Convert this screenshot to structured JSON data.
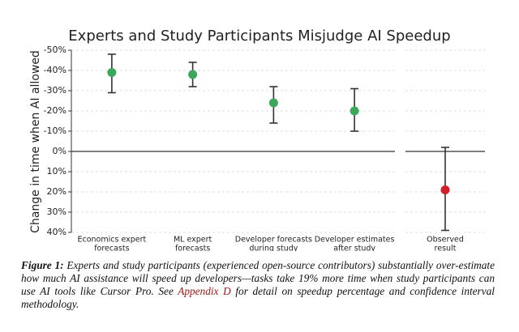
{
  "chart_data": [
    {
      "type": "errorbar",
      "title": "Experts and Study Participants Misjudge AI Speedup",
      "y_label": "Change in time when AI allowed",
      "categories": [
        [
          "Economics expert",
          "forecasts"
        ],
        [
          "ML expert",
          "forecasts"
        ],
        [
          "Developer forecasts",
          "during study"
        ],
        [
          "Developer estimates",
          "after study"
        ]
      ],
      "values": [
        -39,
        -38,
        -24,
        -20
      ],
      "ci_low": [
        -48,
        -44,
        -32,
        -31
      ],
      "ci_high": [
        -29,
        -32,
        -14,
        -10
      ],
      "color": "#3aa75a",
      "ylim": [
        -50,
        40
      ],
      "yticks": [
        {
          "value": -50,
          "label": "-50%"
        },
        {
          "value": -40,
          "label": "-40%"
        },
        {
          "value": -30,
          "label": "-30%"
        },
        {
          "value": -20,
          "label": "-20%"
        },
        {
          "value": -10,
          "label": "-10%"
        },
        {
          "value": 0,
          "label": "0%"
        },
        {
          "value": 10,
          "label": "10%"
        },
        {
          "value": 20,
          "label": "20%"
        },
        {
          "value": 30,
          "label": "30%"
        },
        {
          "value": 40,
          "label": "40%"
        }
      ],
      "grid": true
    },
    {
      "type": "errorbar",
      "categories": [
        [
          "Observed",
          "result"
        ]
      ],
      "values": [
        19
      ],
      "ci_low": [
        -2
      ],
      "ci_high": [
        39
      ],
      "color": "#d0202a",
      "ylim": [
        -50,
        40
      ],
      "grid": true
    }
  ],
  "caption": {
    "label": "Figure 1:",
    "text_before": " Experts and study participants (experienced open-source contributors) substantially over-estimate how much AI assistance will speed up developers—tasks take 19% more time when study participants can use AI tools like Cursor Pro. See ",
    "link": "Appendix D",
    "text_after": " for detail on speedup percentage and confidence interval methodology."
  }
}
